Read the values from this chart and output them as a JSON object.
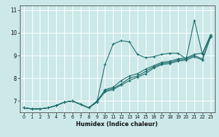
{
  "title": "",
  "xlabel": "Humidex (Indice chaleur)",
  "ylabel": "",
  "bg_color": "#cce8e8",
  "plot_bg_color": "#cce8e8",
  "grid_color": "#ffffff",
  "line_color": "#1a6b6b",
  "xlim": [
    -0.5,
    23.5
  ],
  "ylim": [
    6.5,
    11.2
  ],
  "yticks": [
    7,
    8,
    9,
    10,
    11
  ],
  "xticks": [
    0,
    1,
    2,
    3,
    4,
    5,
    6,
    7,
    8,
    9,
    10,
    11,
    12,
    13,
    14,
    15,
    16,
    17,
    18,
    19,
    20,
    21,
    22,
    23
  ],
  "series": [
    [
      6.7,
      6.65,
      6.65,
      6.7,
      6.8,
      6.95,
      7.0,
      6.85,
      6.7,
      6.95,
      8.6,
      9.5,
      9.65,
      9.6,
      9.05,
      8.9,
      8.95,
      9.05,
      9.1,
      9.1,
      8.85,
      10.55,
      9.05,
      9.9
    ],
    [
      6.7,
      6.65,
      6.65,
      6.7,
      6.8,
      6.95,
      7.0,
      6.85,
      6.7,
      6.95,
      7.5,
      7.6,
      7.9,
      8.1,
      8.2,
      8.4,
      8.55,
      8.7,
      8.75,
      8.85,
      8.9,
      9.05,
      9.1,
      9.9
    ],
    [
      6.7,
      6.65,
      6.65,
      6.7,
      6.8,
      6.95,
      7.0,
      6.85,
      6.7,
      7.0,
      7.45,
      7.55,
      7.75,
      8.0,
      8.1,
      8.3,
      8.5,
      8.65,
      8.7,
      8.8,
      8.85,
      9.0,
      8.85,
      9.85
    ],
    [
      6.7,
      6.65,
      6.65,
      6.7,
      6.8,
      6.95,
      7.0,
      6.85,
      6.7,
      6.95,
      7.4,
      7.5,
      7.7,
      7.9,
      8.05,
      8.2,
      8.45,
      8.6,
      8.65,
      8.75,
      8.8,
      8.95,
      8.8,
      9.8
    ]
  ]
}
